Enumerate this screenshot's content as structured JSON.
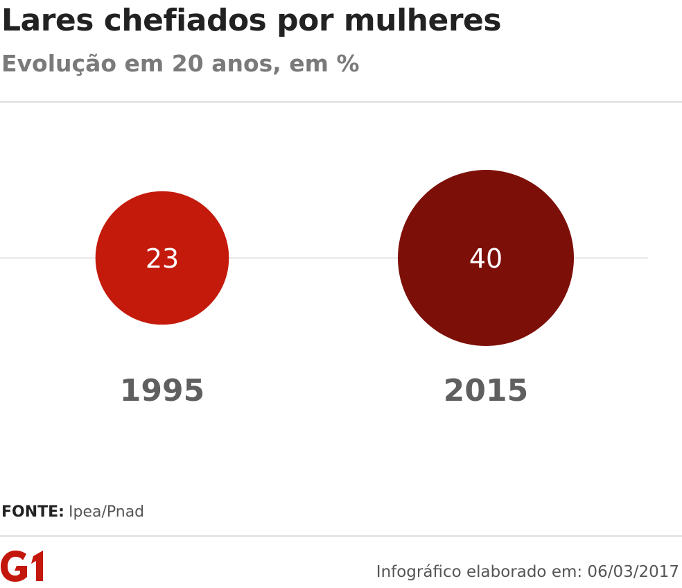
{
  "header": {
    "title": "Lares chefiados por mulheres",
    "subtitle": "Evolução em 20 anos, em %"
  },
  "chart_data": {
    "type": "bubble",
    "title": "Lares chefiados por mulheres",
    "subtitle": "Evolução em 20 anos, em %",
    "categories": [
      "1995",
      "2015"
    ],
    "values": [
      23,
      40
    ],
    "unit": "%",
    "colors": [
      "#c41a0c",
      "#7d0f09"
    ],
    "label_color": "#ffffff",
    "category_label_color": "#5f5f5f",
    "baseline_color": "#e8e8e8"
  },
  "footer": {
    "source_label": "FONTE:",
    "source_value": "Ipea/Pnad",
    "logo_text": "G1",
    "credit": "Infográfico elaborado em: 06/03/2017"
  },
  "brand": {
    "accent": "#c4170c"
  }
}
